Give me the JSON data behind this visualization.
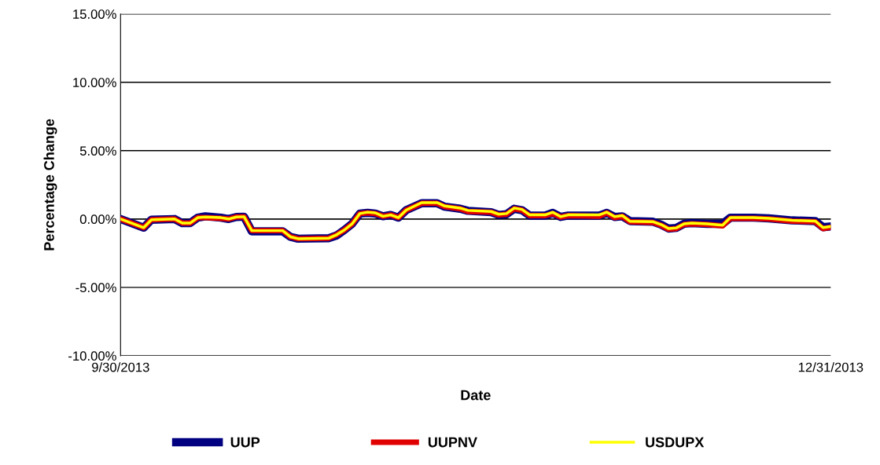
{
  "chart_data": {
    "type": "line",
    "xlabel": "Date",
    "ylabel": "Percentage Change",
    "x": [
      "2013-09-30",
      "2013-10-03",
      "2013-10-04",
      "2013-10-07",
      "2013-10-08",
      "2013-10-09",
      "2013-10-10",
      "2013-10-11",
      "2013-10-13",
      "2013-10-14",
      "2013-10-15",
      "2013-10-16",
      "2013-10-17",
      "2013-10-21",
      "2013-10-22",
      "2013-10-23",
      "2013-10-27",
      "2013-10-28",
      "2013-10-29",
      "2013-10-30",
      "2013-10-31",
      "2013-11-01",
      "2013-11-02",
      "2013-11-03",
      "2013-11-04",
      "2013-11-05",
      "2013-11-06",
      "2013-11-08",
      "2013-11-10",
      "2013-11-11",
      "2013-11-13",
      "2013-11-14",
      "2013-11-17",
      "2013-11-18",
      "2013-11-19",
      "2013-11-20",
      "2013-11-21",
      "2013-11-22",
      "2013-11-24",
      "2013-11-25",
      "2013-11-26",
      "2013-11-27",
      "2013-12-01",
      "2013-12-02",
      "2013-12-03",
      "2013-12-04",
      "2013-12-05",
      "2013-12-08",
      "2013-12-09",
      "2013-12-10",
      "2013-12-11",
      "2013-12-12",
      "2013-12-13",
      "2013-12-15",
      "2013-12-17",
      "2013-12-18",
      "2013-12-21",
      "2013-12-23",
      "2013-12-26",
      "2013-12-29",
      "2013-12-30",
      "2013-12-31"
    ],
    "series": [
      {
        "name": "UUP",
        "color": "#000080",
        "values": [
          0,
          -0.63,
          -0.05,
          0,
          -0.3,
          -0.3,
          0.1,
          0.2,
          0.1,
          0,
          0.15,
          0.17,
          -0.9,
          -0.9,
          -1.3,
          -1.44,
          -1.4,
          -1.2,
          -0.8,
          -0.35,
          0.4,
          0.45,
          0.4,
          0.2,
          0.3,
          0.1,
          0.65,
          1.15,
          1.15,
          0.9,
          0.75,
          0.6,
          0.5,
          0.3,
          0.35,
          0.75,
          0.65,
          0.25,
          0.25,
          0.45,
          0.15,
          0.25,
          0.25,
          0.45,
          0.15,
          0.2,
          -0.15,
          -0.2,
          -0.4,
          -0.7,
          -0.65,
          -0.35,
          -0.3,
          -0.35,
          -0.35,
          0.1,
          0.1,
          0.05,
          -0.1,
          -0.15,
          -0.6,
          -0.55
        ]
      },
      {
        "name": "UUPNV",
        "color": "#e00000",
        "values": [
          0,
          -0.63,
          -0.05,
          0,
          -0.3,
          -0.3,
          0.1,
          0.1,
          0.05,
          0,
          0.15,
          0.17,
          -0.85,
          -0.85,
          -1.3,
          -1.44,
          -1.4,
          -1.15,
          -0.8,
          -0.35,
          0.4,
          0.45,
          0.4,
          0.2,
          0.3,
          0.1,
          0.65,
          1.15,
          1.15,
          0.9,
          0.75,
          0.55,
          0.5,
          0.3,
          0.35,
          0.75,
          0.65,
          0.25,
          0.25,
          0.4,
          0.15,
          0.25,
          0.2,
          0.45,
          0.1,
          0.2,
          -0.2,
          -0.25,
          -0.45,
          -0.75,
          -0.7,
          -0.4,
          -0.35,
          -0.4,
          -0.5,
          0.05,
          0.05,
          0,
          -0.15,
          -0.2,
          -0.7,
          -0.6
        ]
      },
      {
        "name": "USDUPX",
        "color": "#ffff00",
        "values": [
          0,
          -0.63,
          -0.05,
          0,
          -0.3,
          -0.3,
          0.1,
          0.15,
          0.1,
          0,
          0.15,
          0.17,
          -0.85,
          -0.85,
          -1.3,
          -1.44,
          -1.4,
          -1.15,
          -0.8,
          -0.35,
          0.4,
          0.5,
          0.45,
          0.2,
          0.3,
          0.1,
          0.65,
          1.2,
          1.2,
          0.95,
          0.8,
          0.63,
          0.55,
          0.35,
          0.4,
          0.8,
          0.7,
          0.3,
          0.3,
          0.5,
          0.17,
          0.3,
          0.3,
          0.5,
          0.17,
          0.25,
          -0.17,
          -0.2,
          -0.4,
          -0.7,
          -0.65,
          -0.35,
          -0.3,
          -0.35,
          -0.45,
          0.1,
          0.1,
          0.05,
          -0.1,
          -0.15,
          -0.63,
          -0.55
        ]
      }
    ],
    "ylim": [
      -10,
      15
    ],
    "yticks": [
      {
        "value": -10,
        "label": "-10.00%"
      },
      {
        "value": -5,
        "label": "-5.00%"
      },
      {
        "value": 0,
        "label": "0.00%"
      },
      {
        "value": 5,
        "label": "5.00%"
      },
      {
        "value": 10,
        "label": "10.00%"
      },
      {
        "value": 15,
        "label": "15.00%"
      }
    ],
    "xlim": [
      "2013-09-30",
      "2013-12-31"
    ],
    "xticks": [
      {
        "value": "2013-09-30",
        "label": "9/30/2013"
      },
      {
        "value": "2013-12-31",
        "label": "12/31/2013"
      }
    ],
    "grid": "y",
    "legend": "bottom",
    "marker": "none",
    "line_style": "solid"
  }
}
